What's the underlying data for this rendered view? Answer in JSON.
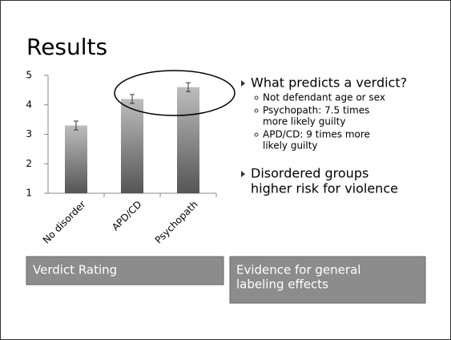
{
  "slide": {
    "title": "Results",
    "bullets": [
      {
        "text": [
          "What predicts a verdict?"
        ],
        "sub": [
          [
            "Not defendant age or sex"
          ],
          [
            "Psychopath: 7.5 times",
            "more likely guilty"
          ],
          [
            "APD/CD: 9 times more",
            "likely guilty"
          ]
        ]
      },
      {
        "text": [
          "Disordered groups",
          "higher risk for violence"
        ],
        "sub": []
      }
    ],
    "captions": [
      [
        "Verdict Rating"
      ],
      [
        "Evidence for general",
        "labeling effects"
      ]
    ]
  },
  "chart_data": {
    "type": "bar",
    "categories": [
      "No disorder",
      "APD/CD",
      "Psychopath"
    ],
    "values": [
      3.3,
      4.2,
      4.6
    ],
    "errors": [
      0.15,
      0.15,
      0.15
    ],
    "color": "#555555",
    "ylim": [
      1,
      5
    ],
    "yticks": [
      1,
      2,
      3,
      4,
      5
    ],
    "grid": false
  }
}
